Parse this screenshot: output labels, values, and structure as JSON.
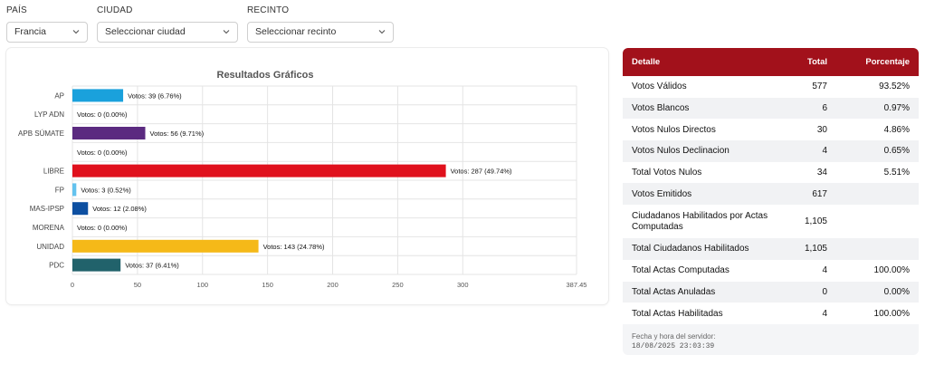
{
  "filters": {
    "pais": {
      "label": "PAÍS",
      "value": "Francia"
    },
    "ciudad": {
      "label": "CIUDAD",
      "value": "Seleccionar ciudad"
    },
    "recinto": {
      "label": "RECINTO",
      "value": "Seleccionar recinto"
    }
  },
  "chart_data": {
    "type": "bar",
    "orientation": "horizontal",
    "title": "Resultados Gráficos",
    "categories": [
      "AP",
      "LYP ADN",
      "APB SÚMATE",
      "",
      "LIBRE",
      "FP",
      "MAS-IPSP",
      "MORENA",
      "UNIDAD",
      "PDC"
    ],
    "values": [
      39,
      0,
      56,
      0,
      287,
      3,
      12,
      0,
      143,
      37
    ],
    "data_labels": [
      "Votos: 39 (6.76%)",
      "Votos: 0 (0.00%)",
      "Votos: 56 (9.71%)",
      "Votos: 0 (0.00%)",
      "Votos: 287 (49.74%)",
      "Votos: 3 (0.52%)",
      "Votos: 12 (2.08%)",
      "Votos: 0 (0.00%)",
      "Votos: 143 (24.78%)",
      "Votos: 37 (6.41%)"
    ],
    "colors": [
      "#1aa1dc",
      "#cccccc",
      "#5b2a80",
      "#cccccc",
      "#e0101c",
      "#63c2ee",
      "#0d4fa1",
      "#cccccc",
      "#f5b918",
      "#21626b"
    ],
    "xlim": [
      0,
      387.45
    ],
    "xticks": [
      "0",
      "50",
      "100",
      "150",
      "200",
      "250",
      "300",
      "387.45"
    ],
    "xtick_values": [
      0,
      50,
      100,
      150,
      200,
      250,
      300,
      387.45
    ],
    "grid": true
  },
  "table": {
    "headers": {
      "detalle": "Detalle",
      "total": "Total",
      "porcentaje": "Porcentaje"
    },
    "rows": [
      {
        "label": "Votos Válidos",
        "total": "577",
        "pct": "93.52%"
      },
      {
        "label": "Votos Blancos",
        "total": "6",
        "pct": "0.97%"
      },
      {
        "label": "Votos Nulos Directos",
        "total": "30",
        "pct": "4.86%"
      },
      {
        "label": "Votos Nulos Declinacion",
        "total": "4",
        "pct": "0.65%"
      },
      {
        "label": "Total Votos Nulos",
        "total": "34",
        "pct": "5.51%"
      },
      {
        "label": "Votos Emitidos",
        "total": "617",
        "pct": ""
      },
      {
        "label": "Ciudadanos Habilitados por Actas Computadas",
        "total": "1,105",
        "pct": ""
      },
      {
        "label": "Total Ciudadanos Habilitados",
        "total": "1,105",
        "pct": ""
      },
      {
        "label": "Total Actas Computadas",
        "total": "4",
        "pct": "100.00%"
      },
      {
        "label": "Total Actas Anuladas",
        "total": "0",
        "pct": "0.00%"
      },
      {
        "label": "Total Actas Habilitadas",
        "total": "4",
        "pct": "100.00%"
      }
    ],
    "server_label": "Fecha y hora del servidor:",
    "server_time": "18/08/2025 23:03:39"
  }
}
